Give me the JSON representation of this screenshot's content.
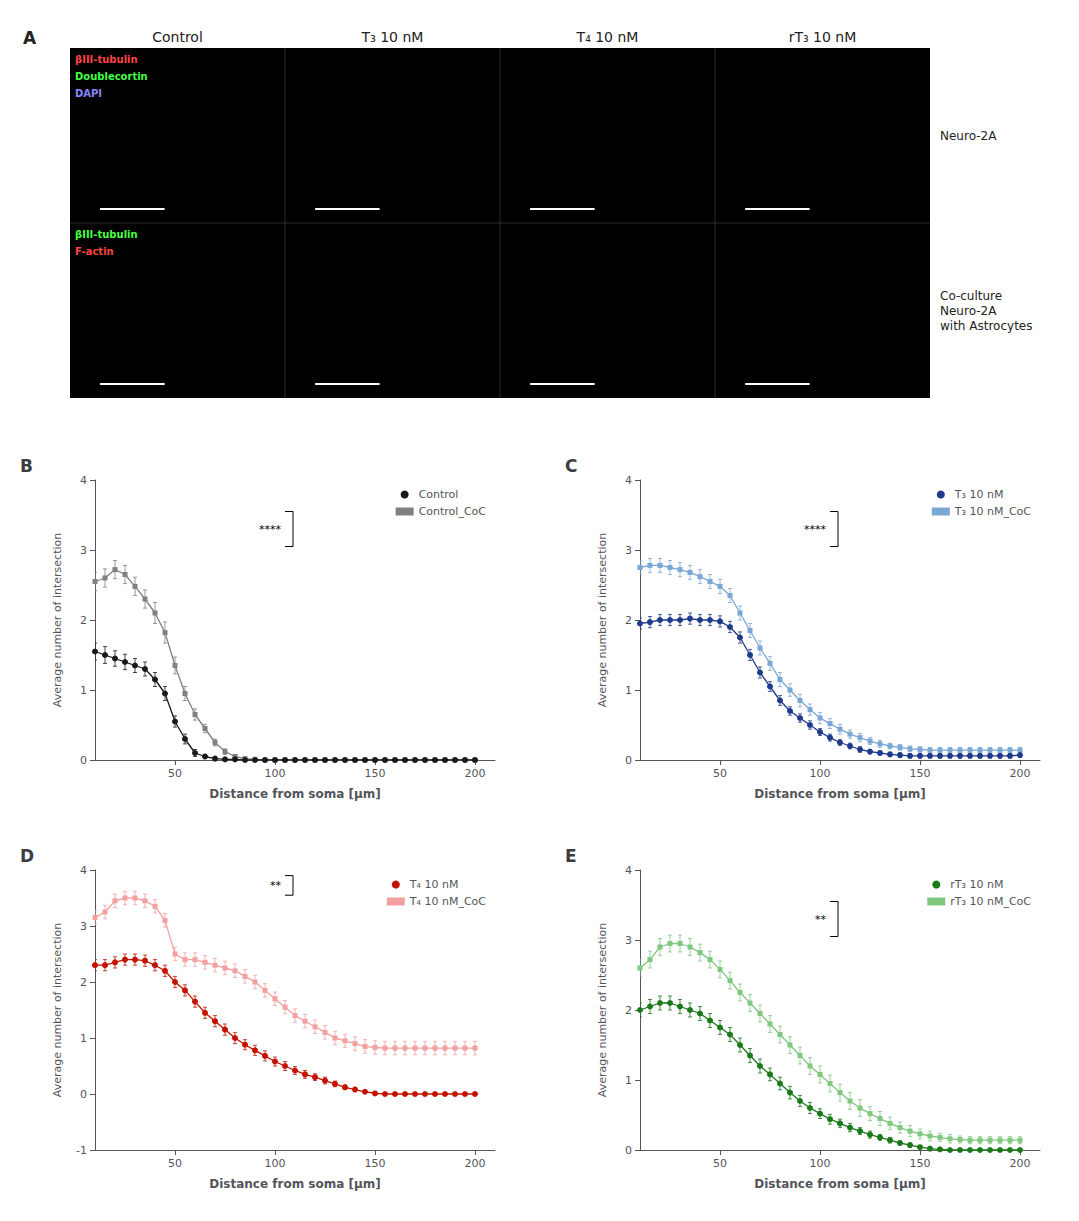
{
  "chart_data": [
    {
      "type": "image_grid",
      "title": "A",
      "color": "#000000",
      "categories": [
        "Control",
        "T₃ 10 nM",
        "T₄ 10 nM",
        "rT₃ 10 nM"
      ],
      "rows": [
        {
          "label": "Neuro-2A",
          "annotations": [
            {
              "text": "βIII-tubulin",
              "color": "#ff4444"
            },
            {
              "text": "Doublecortin",
              "color": "#44ff44"
            },
            {
              "text": "DAPI",
              "color": "#8888ff"
            }
          ]
        },
        {
          "label": "Co-culture\nNeuro-2A\nwith Astrocytes",
          "annotations": [
            {
              "text": "βIII-tubulin",
              "color": "#44ff44"
            },
            {
              "text": "F-actin",
              "color": "#ff4444"
            }
          ]
        }
      ]
    },
    {
      "type": "line",
      "title": "B",
      "xlabel": "Distance from soma [μm]",
      "ylabel": "Average number of intersection",
      "x": [
        10,
        15,
        20,
        25,
        30,
        35,
        40,
        45,
        50,
        55,
        60,
        65,
        70,
        75,
        80,
        85,
        90,
        95,
        100,
        105,
        110,
        115,
        120,
        125,
        130,
        135,
        140,
        145,
        150,
        155,
        160,
        165,
        170,
        175,
        180,
        185,
        190,
        195,
        200
      ],
      "series": [
        {
          "name": "Control",
          "color": "#1a1a1a",
          "marker": "circle",
          "values": [
            1.55,
            1.5,
            1.45,
            1.4,
            1.35,
            1.3,
            1.15,
            0.95,
            0.55,
            0.3,
            0.1,
            0.05,
            0.02,
            0.01,
            0.01,
            0.0,
            0.0,
            0.0,
            0.0,
            0.0,
            0.0,
            0.0,
            0.0,
            0.0,
            0.0,
            0.0,
            0.0,
            0.0,
            0.0,
            0.0,
            0.0,
            0.0,
            0.0,
            0.0,
            0.0,
            0.0,
            0.0,
            0.0,
            0.0
          ],
          "errors": [
            0.12,
            0.12,
            0.11,
            0.11,
            0.1,
            0.1,
            0.1,
            0.1,
            0.08,
            0.07,
            0.05,
            0.03,
            0.02,
            0.01,
            0.01,
            0.0,
            0.0,
            0.0,
            0.0,
            0.0,
            0.0,
            0.0,
            0.0,
            0.0,
            0.0,
            0.0,
            0.0,
            0.0,
            0.0,
            0.0,
            0.0,
            0.0,
            0.0,
            0.0,
            0.0,
            0.0,
            0.0,
            0.0,
            0.0
          ]
        },
        {
          "name": "Control_CoC",
          "color": "#808080",
          "marker": "square",
          "values": [
            2.55,
            2.6,
            2.72,
            2.65,
            2.48,
            2.3,
            2.1,
            1.82,
            1.35,
            0.95,
            0.65,
            0.45,
            0.25,
            0.12,
            0.05,
            0.02,
            0.01,
            0.0,
            0.0,
            0.0,
            0.0,
            0.0,
            0.0,
            0.0,
            0.0,
            0.0,
            0.0,
            0.0,
            0.0,
            0.0,
            0.0,
            0.0,
            0.0,
            0.0,
            0.0,
            0.0,
            0.0,
            0.0,
            0.0
          ],
          "errors": [
            0.13,
            0.13,
            0.13,
            0.13,
            0.13,
            0.13,
            0.15,
            0.15,
            0.12,
            0.1,
            0.08,
            0.06,
            0.05,
            0.04,
            0.02,
            0.01,
            0.01,
            0.0,
            0.0,
            0.0,
            0.0,
            0.0,
            0.0,
            0.0,
            0.0,
            0.0,
            0.0,
            0.0,
            0.0,
            0.0,
            0.0,
            0.0,
            0.0,
            0.0,
            0.0,
            0.0,
            0.0,
            0.0,
            0.0
          ]
        }
      ],
      "xlim": [
        10,
        210
      ],
      "ylim": [
        0,
        4
      ],
      "xticks": [
        50,
        100,
        150,
        200
      ],
      "yticks": [
        0,
        1,
        2,
        3,
        4
      ],
      "legend": "upper right",
      "grid": false,
      "annotations": [
        {
          "text": "****",
          "x": 105,
          "y": [
            3.05,
            3.55
          ]
        }
      ]
    },
    {
      "type": "line",
      "title": "C",
      "xlabel": "Distance from soma [μm]",
      "ylabel": "Average number of intersection",
      "x": [
        10,
        15,
        20,
        25,
        30,
        35,
        40,
        45,
        50,
        55,
        60,
        65,
        70,
        75,
        80,
        85,
        90,
        95,
        100,
        105,
        110,
        115,
        120,
        125,
        130,
        135,
        140,
        145,
        150,
        155,
        160,
        165,
        170,
        175,
        180,
        185,
        190,
        195,
        200
      ],
      "series": [
        {
          "name": "T₃ 10 nM",
          "color": "#1e3a8a",
          "marker": "circle",
          "values": [
            1.95,
            1.97,
            2.0,
            2.0,
            2.0,
            2.02,
            2.0,
            2.0,
            1.98,
            1.9,
            1.75,
            1.5,
            1.25,
            1.05,
            0.85,
            0.7,
            0.6,
            0.5,
            0.4,
            0.32,
            0.25,
            0.2,
            0.15,
            0.12,
            0.1,
            0.08,
            0.07,
            0.06,
            0.06,
            0.06,
            0.06,
            0.06,
            0.06,
            0.06,
            0.06,
            0.06,
            0.06,
            0.06,
            0.07
          ],
          "errors": [
            0.08,
            0.08,
            0.08,
            0.08,
            0.08,
            0.08,
            0.08,
            0.08,
            0.08,
            0.08,
            0.08,
            0.08,
            0.08,
            0.07,
            0.07,
            0.06,
            0.06,
            0.06,
            0.05,
            0.05,
            0.04,
            0.04,
            0.04,
            0.03,
            0.03,
            0.03,
            0.03,
            0.03,
            0.03,
            0.03,
            0.03,
            0.03,
            0.03,
            0.03,
            0.03,
            0.03,
            0.03,
            0.03,
            0.03
          ]
        },
        {
          "name": "T₃ 10 nM_CoC",
          "color": "#7ba7d4",
          "marker": "square",
          "values": [
            2.75,
            2.78,
            2.78,
            2.75,
            2.72,
            2.68,
            2.62,
            2.55,
            2.48,
            2.35,
            2.1,
            1.85,
            1.6,
            1.38,
            1.15,
            1.0,
            0.85,
            0.72,
            0.6,
            0.52,
            0.44,
            0.37,
            0.32,
            0.27,
            0.23,
            0.2,
            0.18,
            0.16,
            0.15,
            0.14,
            0.14,
            0.14,
            0.14,
            0.14,
            0.14,
            0.14,
            0.14,
            0.14,
            0.14
          ],
          "errors": [
            0.1,
            0.1,
            0.1,
            0.1,
            0.1,
            0.1,
            0.1,
            0.1,
            0.1,
            0.1,
            0.1,
            0.1,
            0.1,
            0.1,
            0.1,
            0.09,
            0.09,
            0.08,
            0.08,
            0.07,
            0.07,
            0.06,
            0.06,
            0.05,
            0.05,
            0.04,
            0.04,
            0.04,
            0.04,
            0.04,
            0.04,
            0.04,
            0.04,
            0.04,
            0.04,
            0.04,
            0.04,
            0.04,
            0.04
          ]
        }
      ],
      "xlim": [
        10,
        210
      ],
      "ylim": [
        0,
        4
      ],
      "xticks": [
        50,
        100,
        150,
        200
      ],
      "yticks": [
        0,
        1,
        2,
        3,
        4
      ],
      "legend": "upper right",
      "grid": false,
      "annotations": [
        {
          "text": "****",
          "x": 105,
          "y": [
            3.05,
            3.55
          ]
        }
      ]
    },
    {
      "type": "line",
      "title": "D",
      "xlabel": "Distance from soma [μm]",
      "ylabel": "Average number of intersection",
      "x": [
        10,
        15,
        20,
        25,
        30,
        35,
        40,
        45,
        50,
        55,
        60,
        65,
        70,
        75,
        80,
        85,
        90,
        95,
        100,
        105,
        110,
        115,
        120,
        125,
        130,
        135,
        140,
        145,
        150,
        155,
        160,
        165,
        170,
        175,
        180,
        185,
        190,
        195,
        200
      ],
      "series": [
        {
          "name": "T₄ 10 nM",
          "color": "#c41200",
          "marker": "circle",
          "values": [
            2.3,
            2.3,
            2.35,
            2.4,
            2.4,
            2.38,
            2.3,
            2.2,
            2.0,
            1.85,
            1.65,
            1.45,
            1.3,
            1.15,
            1.0,
            0.88,
            0.78,
            0.68,
            0.58,
            0.5,
            0.42,
            0.35,
            0.3,
            0.24,
            0.18,
            0.12,
            0.08,
            0.04,
            0.01,
            0.0,
            0.0,
            0.0,
            0.0,
            0.0,
            0.0,
            0.0,
            0.0,
            0.0,
            0.0
          ],
          "errors": [
            0.1,
            0.1,
            0.1,
            0.1,
            0.1,
            0.1,
            0.1,
            0.1,
            0.1,
            0.1,
            0.1,
            0.1,
            0.1,
            0.1,
            0.1,
            0.09,
            0.09,
            0.09,
            0.08,
            0.08,
            0.07,
            0.07,
            0.06,
            0.06,
            0.05,
            0.04,
            0.04,
            0.03,
            0.02,
            0.0,
            0.0,
            0.0,
            0.0,
            0.0,
            0.0,
            0.0,
            0.0,
            0.0,
            0.0
          ]
        },
        {
          "name": "T₄ 10 nM_CoC",
          "color": "#f4a0a0",
          "marker": "square",
          "values": [
            3.15,
            3.25,
            3.45,
            3.5,
            3.5,
            3.45,
            3.35,
            3.1,
            2.5,
            2.4,
            2.4,
            2.35,
            2.3,
            2.25,
            2.2,
            2.1,
            2.0,
            1.85,
            1.7,
            1.55,
            1.4,
            1.3,
            1.2,
            1.1,
            1.0,
            0.95,
            0.9,
            0.85,
            0.83,
            0.82,
            0.82,
            0.82,
            0.82,
            0.82,
            0.82,
            0.82,
            0.82,
            0.82,
            0.82
          ],
          "errors": [
            0.12,
            0.12,
            0.12,
            0.12,
            0.12,
            0.12,
            0.12,
            0.12,
            0.12,
            0.12,
            0.12,
            0.12,
            0.12,
            0.12,
            0.12,
            0.12,
            0.12,
            0.12,
            0.12,
            0.12,
            0.12,
            0.12,
            0.12,
            0.12,
            0.12,
            0.12,
            0.12,
            0.12,
            0.12,
            0.12,
            0.12,
            0.12,
            0.12,
            0.12,
            0.12,
            0.12,
            0.12,
            0.12,
            0.12
          ]
        }
      ],
      "xlim": [
        10,
        210
      ],
      "ylim": [
        -1,
        4
      ],
      "xticks": [
        50,
        100,
        150,
        200
      ],
      "yticks": [
        -1,
        0,
        1,
        2,
        3,
        4
      ],
      "legend": "upper right",
      "grid": false,
      "annotations": [
        {
          "text": "**",
          "x": 105,
          "y": [
            3.55,
            3.9
          ]
        }
      ]
    },
    {
      "type": "line",
      "title": "E",
      "xlabel": "Distance from soma [μm]",
      "ylabel": "Average number of intersection",
      "x": [
        10,
        15,
        20,
        25,
        30,
        35,
        40,
        45,
        50,
        55,
        60,
        65,
        70,
        75,
        80,
        85,
        90,
        95,
        100,
        105,
        110,
        115,
        120,
        125,
        130,
        135,
        140,
        145,
        150,
        155,
        160,
        165,
        170,
        175,
        180,
        185,
        190,
        195,
        200
      ],
      "series": [
        {
          "name": "rT₃ 10 nM",
          "color": "#1a7a1a",
          "marker": "circle",
          "values": [
            2.0,
            2.05,
            2.1,
            2.1,
            2.05,
            2.0,
            1.95,
            1.85,
            1.75,
            1.65,
            1.5,
            1.35,
            1.2,
            1.08,
            0.95,
            0.82,
            0.7,
            0.6,
            0.52,
            0.44,
            0.38,
            0.32,
            0.27,
            0.22,
            0.18,
            0.14,
            0.1,
            0.07,
            0.04,
            0.02,
            0.01,
            0.0,
            0.0,
            0.0,
            0.0,
            0.0,
            0.0,
            0.0,
            0.0
          ],
          "errors": [
            0.1,
            0.1,
            0.1,
            0.1,
            0.1,
            0.1,
            0.1,
            0.1,
            0.1,
            0.1,
            0.1,
            0.1,
            0.1,
            0.09,
            0.09,
            0.09,
            0.08,
            0.08,
            0.07,
            0.07,
            0.06,
            0.06,
            0.05,
            0.05,
            0.04,
            0.04,
            0.03,
            0.03,
            0.02,
            0.02,
            0.01,
            0.0,
            0.0,
            0.0,
            0.0,
            0.0,
            0.0,
            0.0,
            0.0
          ]
        },
        {
          "name": "rT₃ 10 nM_CoC",
          "color": "#80c880",
          "marker": "square",
          "values": [
            2.6,
            2.72,
            2.9,
            2.95,
            2.95,
            2.9,
            2.82,
            2.72,
            2.58,
            2.42,
            2.25,
            2.1,
            1.95,
            1.8,
            1.65,
            1.5,
            1.35,
            1.2,
            1.08,
            0.95,
            0.82,
            0.7,
            0.6,
            0.52,
            0.45,
            0.38,
            0.32,
            0.27,
            0.23,
            0.2,
            0.18,
            0.16,
            0.15,
            0.14,
            0.14,
            0.14,
            0.14,
            0.14,
            0.14
          ],
          "errors": [
            0.12,
            0.12,
            0.12,
            0.12,
            0.12,
            0.12,
            0.12,
            0.12,
            0.12,
            0.12,
            0.12,
            0.12,
            0.12,
            0.12,
            0.12,
            0.12,
            0.12,
            0.12,
            0.12,
            0.12,
            0.12,
            0.12,
            0.12,
            0.1,
            0.1,
            0.09,
            0.08,
            0.08,
            0.07,
            0.07,
            0.06,
            0.06,
            0.05,
            0.05,
            0.05,
            0.05,
            0.05,
            0.05,
            0.05
          ]
        }
      ],
      "xlim": [
        10,
        210
      ],
      "ylim": [
        0,
        4
      ],
      "xticks": [
        50,
        100,
        150,
        200
      ],
      "yticks": [
        0,
        1,
        2,
        3,
        4
      ],
      "legend": "upper right",
      "grid": false,
      "annotations": [
        {
          "text": "**",
          "x": 105,
          "y": [
            3.05,
            3.55
          ]
        }
      ]
    }
  ]
}
